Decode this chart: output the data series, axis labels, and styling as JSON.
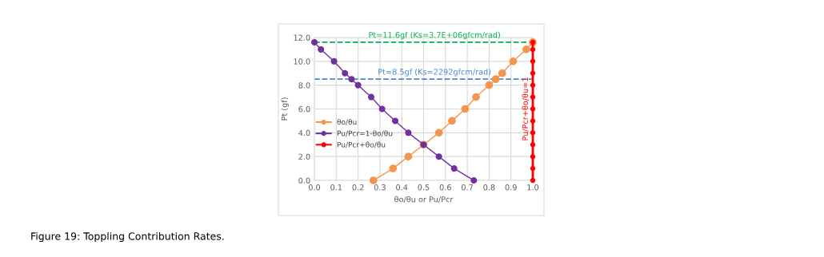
{
  "chart_data": {
    "type": "line",
    "xlabel": "θo/θu or Pu/Pcr",
    "ylabel": "Pt (gf)",
    "xlim": [
      0.0,
      1.0
    ],
    "xticks": [
      {
        "value": 0.0,
        "label": "0.0"
      },
      {
        "value": 0.1,
        "label": "0.1"
      },
      {
        "value": 0.2,
        "label": "0.2"
      },
      {
        "value": 0.3,
        "label": "0.3"
      },
      {
        "value": 0.4,
        "label": "0.4"
      },
      {
        "value": 0.5,
        "label": "0.5"
      },
      {
        "value": 0.6,
        "label": "0.6"
      },
      {
        "value": 0.7,
        "label": "0.7"
      },
      {
        "value": 0.8,
        "label": "0.8"
      },
      {
        "value": 0.9,
        "label": "0.9"
      },
      {
        "value": 1.0,
        "label": "1.0"
      }
    ],
    "ylim": [
      0.0,
      12.0
    ],
    "yticks": [
      {
        "value": 0.0,
        "label": "0.0"
      },
      {
        "value": 2.0,
        "label": "2.0"
      },
      {
        "value": 4.0,
        "label": "4.0"
      },
      {
        "value": 6.0,
        "label": "6.0"
      },
      {
        "value": 8.0,
        "label": "8.0"
      },
      {
        "value": 10.0,
        "label": "10.0"
      },
      {
        "value": 12.0,
        "label": "12.0"
      }
    ],
    "grid": true,
    "legend": "left",
    "marker": "circle",
    "line_style": "solid",
    "series": [
      {
        "name": "θo/θu",
        "color": "#f4954f",
        "x": [
          0.27,
          0.36,
          0.43,
          0.5,
          0.57,
          0.63,
          0.69,
          0.74,
          0.8,
          0.83,
          0.86,
          0.91,
          0.97,
          1.0
        ],
        "values": [
          0,
          1,
          2,
          3,
          4,
          5,
          6,
          7,
          8,
          8.5,
          9,
          10,
          11,
          11.6
        ]
      },
      {
        "name": "Pu/Pcr=1-θo/θu",
        "color": "#7030a0",
        "x": [
          0.0,
          0.03,
          0.09,
          0.14,
          0.17,
          0.2,
          0.26,
          0.31,
          0.37,
          0.43,
          0.5,
          0.57,
          0.64,
          0.73
        ],
        "values": [
          11.6,
          11,
          10,
          9,
          8.5,
          8,
          7,
          6,
          5,
          4,
          3,
          2,
          1,
          0
        ]
      },
      {
        "name": "Pu/Pcr+θo/θu",
        "color": "#ff0000",
        "x": [
          1.0,
          1.0,
          1.0,
          1.0,
          1.0,
          1.0,
          1.0,
          1.0,
          1.0,
          1.0,
          1.0,
          1.0,
          1.0
        ],
        "values": [
          0,
          1,
          2,
          3,
          4,
          5,
          6,
          7,
          8,
          9,
          10,
          11,
          11.6
        ]
      }
    ],
    "ref_lines": [
      {
        "axis": "y",
        "value": 11.6,
        "label": "Pt=11.6gf (Ks=3.7E+06gfcm/rad)",
        "color": "#00b050",
        "line_style": "dashed"
      },
      {
        "axis": "y",
        "value": 8.5,
        "label": "Pt=8.5gf (Ks=2292gfcm/rad)",
        "color": "#4a86d4",
        "line_style": "dashed"
      }
    ],
    "annotations": [
      {
        "text": "Pu/Pcr+θo/θu=1",
        "x": 1.0,
        "y": 6.0
      },
      "Figure 19: Toppling Contribution Rates."
    ]
  }
}
